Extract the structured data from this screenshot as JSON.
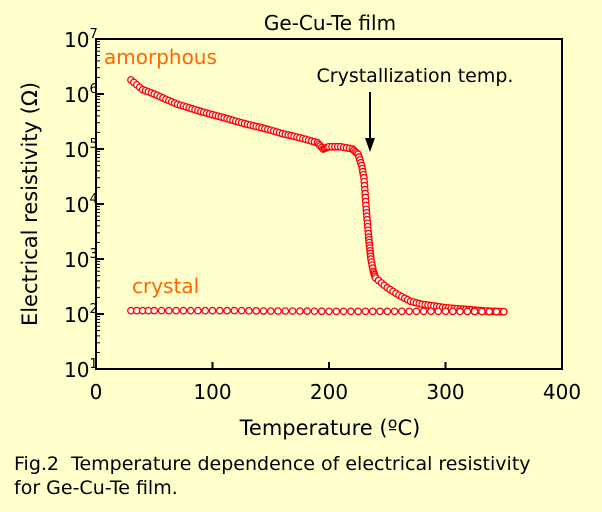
{
  "chart_data": {
    "type": "scatter",
    "title": "Ge-Cu-Te film",
    "xlabel": "Temperature (ºC)",
    "ylabel": "Electrical resistivity (Ω)",
    "xlim": [
      0,
      400
    ],
    "ylim_log10": [
      1,
      7
    ],
    "yscale": "log",
    "x_ticks": [
      0,
      100,
      200,
      300,
      400
    ],
    "y_ticks": [
      {
        "base": "10",
        "exp": "1"
      },
      {
        "base": "10",
        "exp": "2"
      },
      {
        "base": "10",
        "exp": "3"
      },
      {
        "base": "10",
        "exp": "4"
      },
      {
        "base": "10",
        "exp": "5"
      },
      {
        "base": "10",
        "exp": "6"
      },
      {
        "base": "10",
        "exp": "7"
      }
    ],
    "marker_color": "#ff0000",
    "series": [
      {
        "name": "amorphous",
        "x": [
          30,
          40,
          50,
          60,
          70,
          80,
          90,
          100,
          110,
          120,
          130,
          140,
          150,
          160,
          170,
          180,
          190,
          195,
          200,
          210,
          220,
          225,
          228,
          230,
          232,
          234,
          236,
          238,
          240,
          250,
          260,
          270,
          280,
          290,
          300,
          310,
          320,
          330,
          340,
          350
        ],
        "y": [
          1800000,
          1200000,
          1000000,
          800000,
          650000,
          560000,
          480000,
          420000,
          370000,
          320000,
          280000,
          250000,
          220000,
          190000,
          170000,
          150000,
          130000,
          100000,
          110000,
          110000,
          100000,
          80000,
          50000,
          30000,
          8000,
          2500,
          1000,
          600,
          450,
          300,
          220,
          170,
          150,
          140,
          130,
          125,
          120,
          115,
          112,
          110
        ]
      },
      {
        "name": "crystal",
        "x": [
          30,
          50,
          75,
          100,
          125,
          150,
          175,
          200,
          225,
          250,
          275,
          300,
          325,
          350
        ],
        "y": [
          115,
          115,
          115,
          115,
          115,
          113,
          113,
          112,
          112,
          112,
          112,
          112,
          111,
          110
        ]
      }
    ],
    "annotations": [
      {
        "text": "Crystallization temp.",
        "x": 235,
        "y": 100000
      }
    ]
  },
  "caption": "Fig.2  Temperature dependence of electrical resistivity\nfor Ge-Cu-Te film."
}
